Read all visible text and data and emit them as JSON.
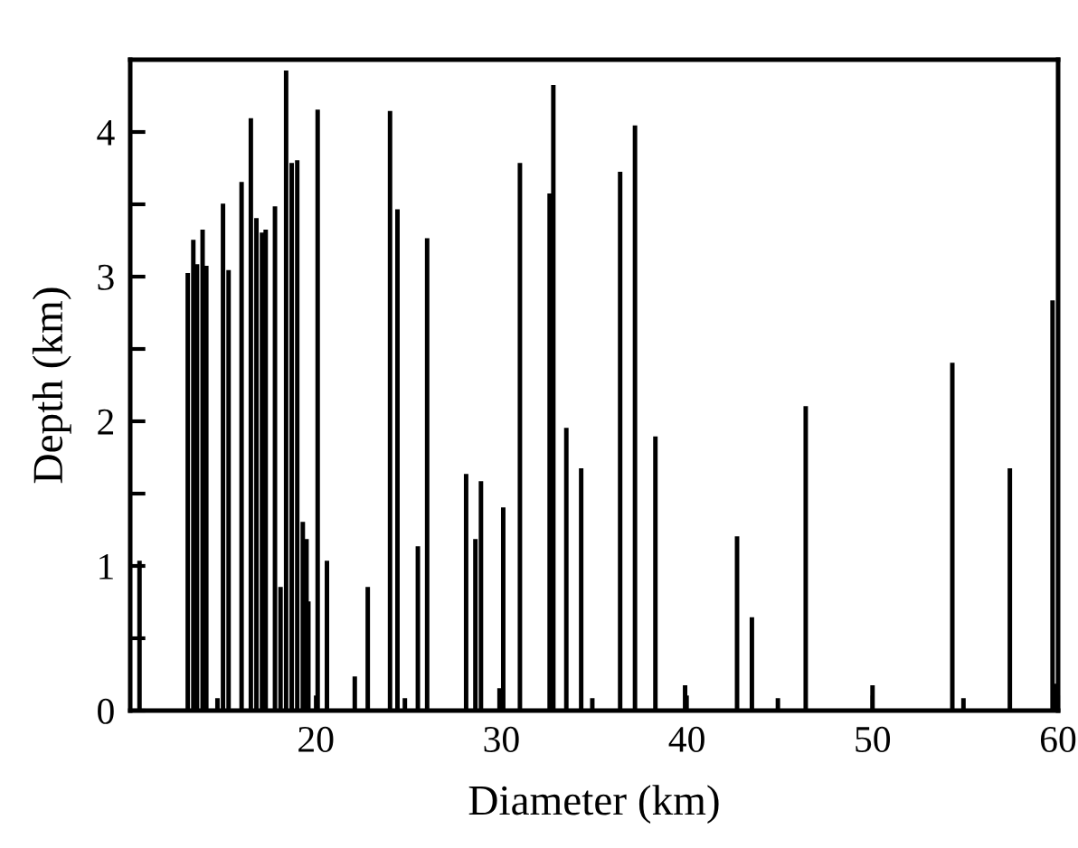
{
  "chart_data": {
    "type": "bar",
    "xlabel": "Diameter (km)",
    "ylabel": "Depth (km)",
    "x": [
      10.5,
      13.1,
      13.4,
      13.6,
      13.9,
      14.1,
      14.7,
      15.0,
      15.3,
      16.0,
      16.5,
      16.8,
      17.1,
      17.3,
      17.8,
      18.1,
      18.4,
      18.7,
      19.0,
      19.3,
      19.5,
      19.6,
      20.1,
      20.6,
      22.1,
      22.8,
      24.0,
      24.4,
      24.8,
      25.5,
      26.0,
      28.1,
      28.6,
      28.9,
      29.9,
      30.1,
      31.0,
      32.6,
      32.8,
      33.5,
      34.3,
      34.9,
      36.4,
      37.2,
      38.3,
      39.9,
      42.7,
      43.5,
      44.9,
      46.4,
      50.0,
      54.3,
      54.9,
      57.4,
      59.7,
      59.9
    ],
    "values": [
      1.03,
      3.02,
      3.25,
      3.08,
      3.32,
      3.07,
      0.08,
      3.5,
      3.04,
      3.65,
      4.09,
      3.4,
      3.3,
      3.32,
      3.48,
      0.85,
      4.42,
      3.78,
      3.8,
      1.3,
      1.18,
      0.75,
      4.15,
      1.03,
      0.23,
      0.85,
      4.14,
      3.46,
      0.08,
      1.13,
      3.26,
      1.63,
      1.18,
      1.58,
      0.15,
      1.4,
      3.78,
      3.57,
      4.32,
      1.95,
      1.67,
      0.08,
      3.72,
      4.04,
      1.89,
      0.17,
      1.2,
      0.64,
      0.08,
      2.1,
      0.17,
      2.4,
      0.08,
      1.67,
      2.83,
      0.18
    ],
    "color": "#000000",
    "xlim": [
      10,
      60
    ],
    "xticks": [
      20,
      30,
      40,
      50,
      60
    ],
    "ylim": [
      0,
      4.5
    ],
    "yticks": [
      0,
      {
        "value": 0.5,
        "label": null
      },
      1,
      {
        "value": 1.5,
        "label": null
      },
      2,
      {
        "value": 2.5,
        "label": null
      },
      3,
      {
        "value": 3.5,
        "label": null
      },
      4
    ],
    "grid": false,
    "legend": false
  }
}
